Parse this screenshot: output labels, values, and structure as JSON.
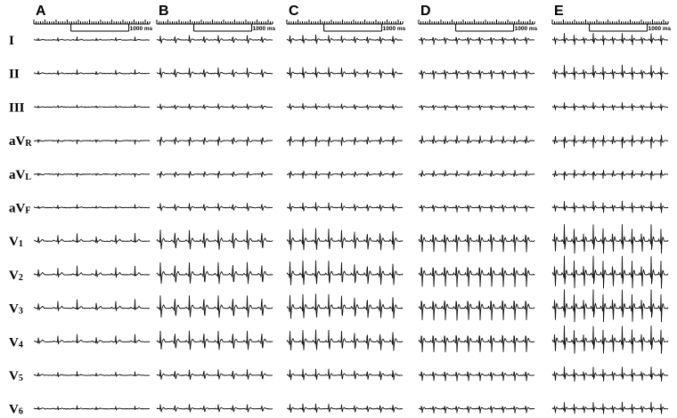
{
  "panels": [
    {
      "id": "A",
      "label": "A",
      "beats": 6,
      "amp": 0.55,
      "polarity": "narrow"
    },
    {
      "id": "B",
      "label": "B",
      "beats": 8,
      "amp": 0.8,
      "polarity": "wide"
    },
    {
      "id": "C",
      "label": "C",
      "beats": 9,
      "amp": 0.9,
      "polarity": "wide"
    },
    {
      "id": "D",
      "label": "D",
      "beats": 10,
      "amp": 1.05,
      "polarity": "wide"
    },
    {
      "id": "E",
      "label": "E",
      "beats": 12,
      "amp": 1.2,
      "polarity": "wide"
    }
  ],
  "scale_bar": {
    "label": "1000 ms"
  },
  "leads": [
    {
      "id": "I",
      "main": "I",
      "sub": "",
      "gain": 0.35,
      "inv": false
    },
    {
      "id": "II",
      "main": "II",
      "sub": "",
      "gain": 0.45,
      "inv": false
    },
    {
      "id": "III",
      "main": "III",
      "sub": "",
      "gain": 0.25,
      "inv": false
    },
    {
      "id": "aVR",
      "main": "aV",
      "sub": "R",
      "gain": 0.4,
      "inv": true
    },
    {
      "id": "aVL",
      "main": "aV",
      "sub": "L",
      "gain": 0.3,
      "inv": true
    },
    {
      "id": "aVF",
      "main": "aV",
      "sub": "F",
      "gain": 0.35,
      "inv": false
    },
    {
      "id": "V1",
      "main": "V",
      "sub": "1",
      "gain": 0.9,
      "inv": false
    },
    {
      "id": "V2",
      "main": "V",
      "sub": "2",
      "gain": 1.0,
      "inv": false
    },
    {
      "id": "V3",
      "main": "V",
      "sub": "3",
      "gain": 1.0,
      "inv": false
    },
    {
      "id": "V4",
      "main": "V",
      "sub": "4",
      "gain": 0.85,
      "inv": false
    },
    {
      "id": "V5",
      "main": "V",
      "sub": "5",
      "gain": 0.45,
      "inv": false
    },
    {
      "id": "V6",
      "main": "V",
      "sub": "6",
      "gain": 0.35,
      "inv": false
    }
  ]
}
